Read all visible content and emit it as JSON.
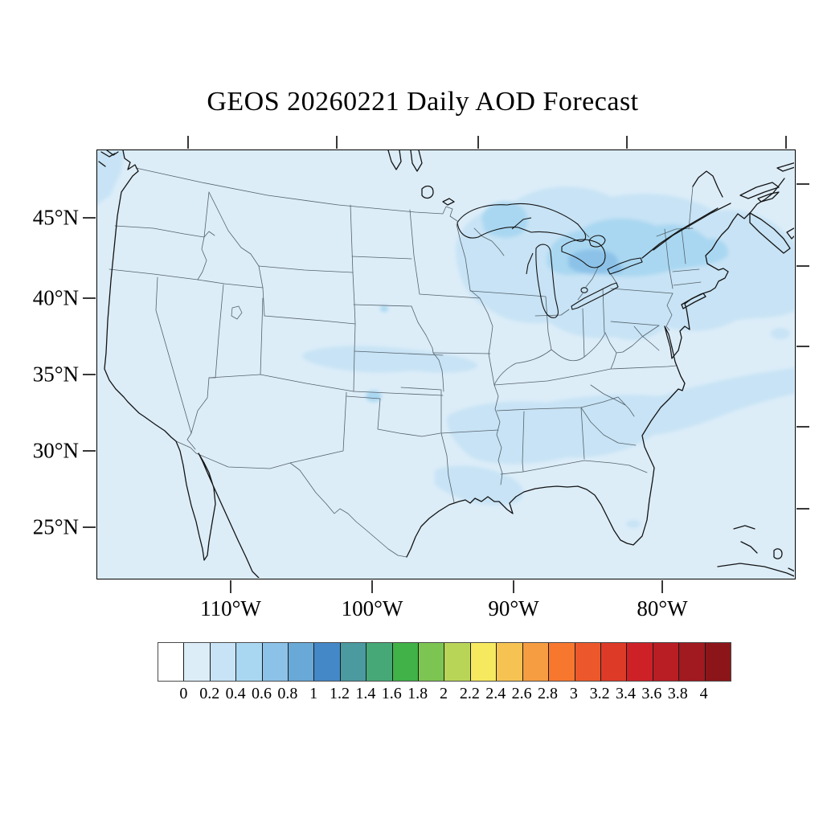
{
  "title": "GEOS 20260221 Daily AOD Forecast",
  "map": {
    "lat_tick_labels": [
      "45°N",
      "40°N",
      "35°N",
      "30°N",
      "25°N"
    ],
    "lon_tick_labels": [
      "110°W",
      "100°W",
      "90°W",
      "80°W"
    ],
    "background_color": "#dcedf8",
    "shading_colors": {
      "level0_0_to_0p2": "#dcedf8",
      "level1_0p2_to_0p4": "#c7e3f5",
      "level2_0p4_to_0p6": "#a9d7f1",
      "level3_0p6_to_0p8": "#8cc2e8"
    },
    "aod_regions": [
      {
        "area": "Great Lakes through upstate New York and New England, extending offshore",
        "aod_range": "0.2-0.8"
      },
      {
        "area": "Lake Michigan / Lake Erie / Lake Ontario corridor core",
        "aod_range": "0.4-0.8"
      },
      {
        "area": "Kansas and eastern Colorado band",
        "aod_range": "0.2-0.6"
      },
      {
        "area": "Gulf Coast and Southeast (LA, MS, AL, GA, SC) extending offshore Atlantic",
        "aod_range": "0.2-0.4"
      },
      {
        "area": "Pacific Northwest coastal waters",
        "aod_range": "0.2-0.4"
      },
      {
        "area": "Remainder of CONUS domain",
        "aod_range": "0-0.2"
      }
    ]
  },
  "colorbar": {
    "tick_labels": [
      "0",
      "0.2",
      "0.4",
      "0.6",
      "0.8",
      "1",
      "1.2",
      "1.4",
      "1.6",
      "1.8",
      "2",
      "2.2",
      "2.4",
      "2.6",
      "2.8",
      "3",
      "3.2",
      "3.4",
      "3.6",
      "3.8",
      "4"
    ],
    "colors": [
      "#ffffff",
      "#dcedf8",
      "#c7e3f5",
      "#a9d7f1",
      "#8cc2e8",
      "#68a9d7",
      "#4488c7",
      "#4b9aa0",
      "#47a877",
      "#40b247",
      "#7dc553",
      "#b9d558",
      "#f6e960",
      "#f6c353",
      "#f69d41",
      "#f8772e",
      "#ec582b",
      "#de3a28",
      "#cd2127",
      "#b81e23",
      "#a01a1f",
      "#8c151a"
    ]
  },
  "chart_data": {
    "type": "heatmap",
    "title": "GEOS 20260221 Daily AOD Forecast",
    "variable": "Aerosol Optical Depth (AOD)",
    "geography": "Continental United States with state boundaries, southern Canada and northern Mexico coastlines",
    "x_axis": {
      "label": "Longitude",
      "tick_values": [
        -110,
        -100,
        -90,
        -80
      ],
      "tick_labels": [
        "110°W",
        "100°W",
        "90°W",
        "80°W"
      ]
    },
    "y_axis": {
      "label": "Latitude",
      "tick_values": [
        45,
        40,
        35,
        30,
        25
      ],
      "tick_labels": [
        "45°N",
        "40°N",
        "35°N",
        "30°N",
        "25°N"
      ]
    },
    "colorbar_range": [
      0,
      4
    ],
    "colorbar_step": 0.2,
    "legend_position": "bottom",
    "grid": false,
    "series": [
      {
        "name": "Great Lakes / Northeast plume",
        "approx_max_aod": 0.8
      },
      {
        "name": "Kansas band",
        "approx_max_aod": 0.6
      },
      {
        "name": "Southeast / Gulf Coast band",
        "approx_max_aod": 0.4
      },
      {
        "name": "Pacific NW offshore",
        "approx_max_aod": 0.4
      },
      {
        "name": "Domain background",
        "approx_max_aod": 0.2
      }
    ]
  }
}
